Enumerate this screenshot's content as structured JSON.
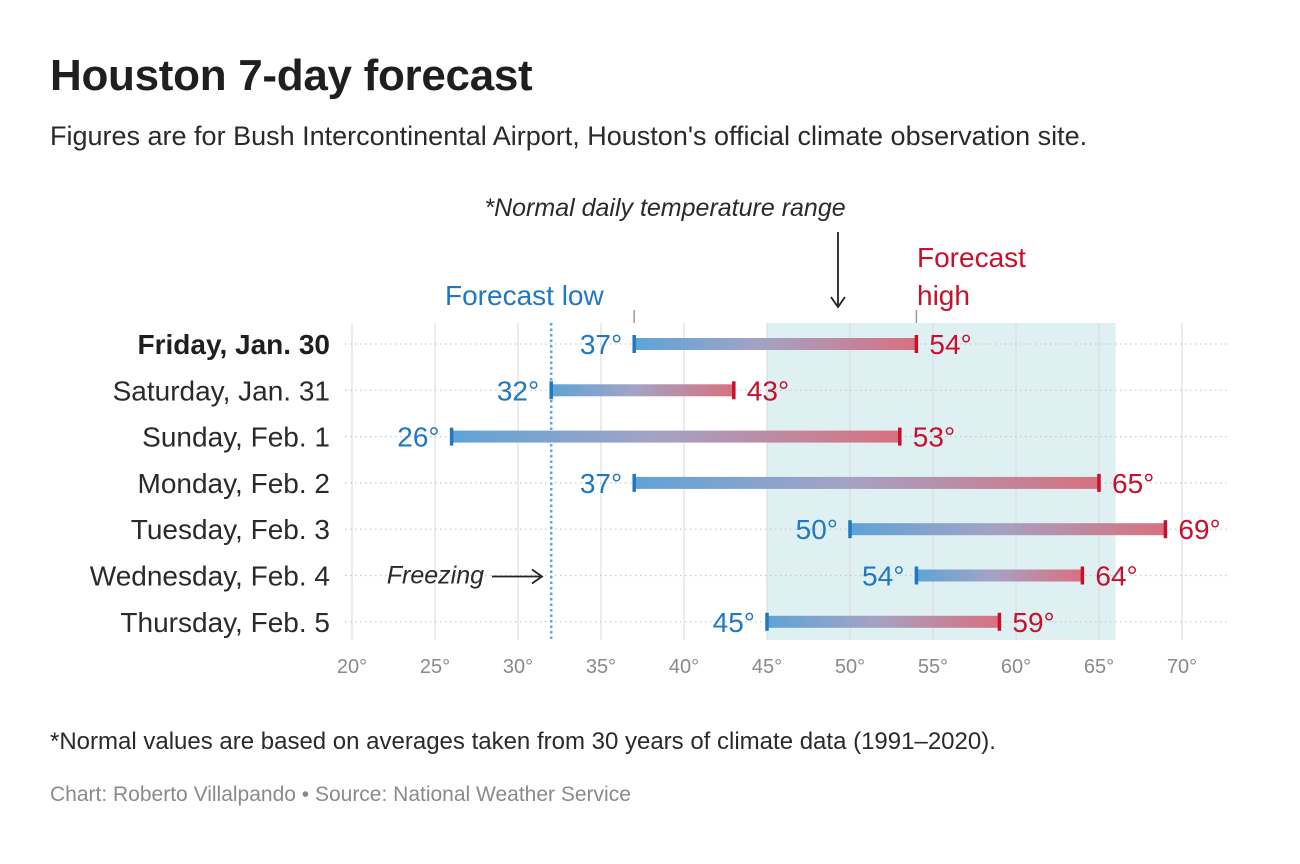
{
  "header": {
    "title": "Houston 7-day forecast",
    "subtitle": "Figures are for Bush Intercontinental Airport, Houston's official climate observation site."
  },
  "annotations": {
    "normal_range_label": "*Normal daily temperature range",
    "forecast_low_label": "Forecast low",
    "forecast_high_label": [
      "Forecast",
      "high"
    ],
    "freezing_label": "Freezing"
  },
  "footer": {
    "footnote": "*Normal values are based on averages taken from 30 years of climate data (1991–2020).",
    "credit": "Chart: Roberto Villalpando • Source: National Weather Service"
  },
  "colors": {
    "low": "#1f78c1",
    "high": "#c8102e",
    "normal_band": "#dff0f2",
    "grid": "#d9d9d9",
    "freezing_line": "#5aa6dc"
  },
  "chart_data": {
    "type": "range",
    "unit": "°",
    "categories": [
      "Friday, Jan. 30",
      "Saturday, Jan. 31",
      "Sunday, Feb. 1",
      "Monday, Feb. 2",
      "Tuesday, Feb. 3",
      "Wednesday, Feb. 4",
      "Thursday, Feb. 5"
    ],
    "highlighted_category": "Friday, Jan. 30",
    "series": [
      {
        "name": "Forecast low",
        "values": [
          37,
          32,
          26,
          37,
          50,
          54,
          45
        ]
      },
      {
        "name": "Forecast high",
        "values": [
          54,
          43,
          53,
          65,
          69,
          64,
          59
        ]
      }
    ],
    "normal_range": [
      37,
      54
    ],
    "normal_band": [
      45,
      66
    ],
    "freezing": 32,
    "xlim": [
      20,
      72
    ],
    "xticks": [
      20,
      25,
      30,
      35,
      40,
      45,
      50,
      55,
      60,
      65,
      70
    ],
    "xtick_labels": [
      "20°",
      "25°",
      "30°",
      "35°",
      "40°",
      "45°",
      "50°",
      "55°",
      "60°",
      "65°",
      "70°"
    ],
    "grid": true
  }
}
